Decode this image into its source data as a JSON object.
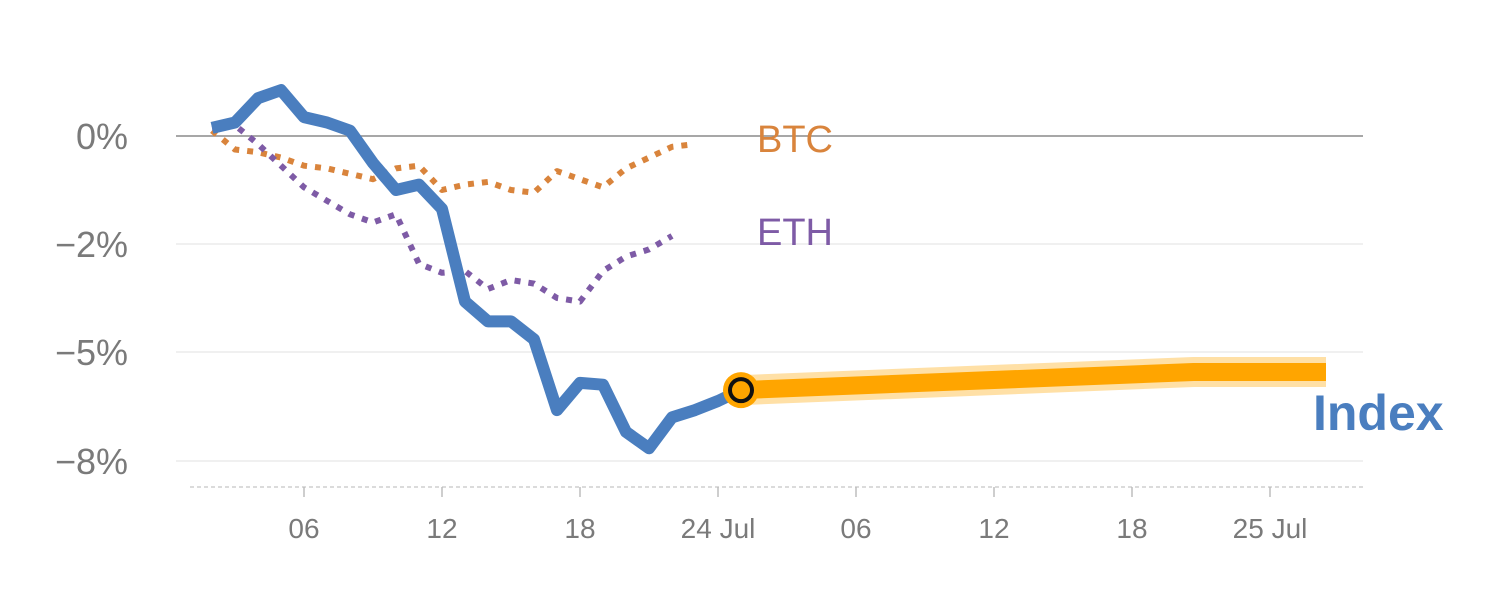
{
  "chart_data": {
    "type": "line",
    "y_ticks": [
      {
        "value": 0,
        "label": "0%"
      },
      {
        "value": -2,
        "label": "−2%"
      },
      {
        "value": -5,
        "label": "−5%"
      },
      {
        "value": -8,
        "label": "−8%"
      }
    ],
    "x_ticks": [
      {
        "index": 4,
        "label": "06"
      },
      {
        "index": 10,
        "label": "12"
      },
      {
        "index": 16,
        "label": "18"
      },
      {
        "index": 22,
        "label": "24 Jul"
      },
      {
        "index": 28,
        "label": "06"
      },
      {
        "index": 34,
        "label": "12"
      },
      {
        "index": 40,
        "label": "18"
      },
      {
        "index": 46,
        "label": "25 Jul"
      }
    ],
    "series": [
      {
        "name": "BTC",
        "label": "BTC",
        "color": "#d9843c",
        "style": "dotted",
        "values": [
          0.1,
          -0.25,
          -0.3,
          -0.4,
          -0.55,
          -0.6,
          -0.7,
          -0.8,
          -0.6,
          -0.55,
          -1.0,
          -0.9,
          -0.85,
          -1.0,
          -1.05,
          -0.65,
          -0.8,
          -0.95,
          -0.6,
          -0.4,
          -0.2,
          -0.15
        ]
      },
      {
        "name": "ETH",
        "label": "ETH",
        "color": "#7e5ba6",
        "style": "dotted",
        "values": [
          0.15,
          0.2,
          -0.15,
          -0.55,
          -0.95,
          -1.2,
          -1.45,
          -1.6,
          -1.45,
          -2.55,
          -2.8,
          -2.75,
          -3.25,
          -3.0,
          -3.1,
          -3.5,
          -3.6,
          -2.75,
          -2.35,
          -2.15,
          -1.85
        ]
      },
      {
        "name": "Index",
        "label": "Index",
        "color": "#4a7ebf",
        "style": "solid",
        "values": [
          0.15,
          0.25,
          0.7,
          0.85,
          0.35,
          0.25,
          0.1,
          -0.5,
          -1.0,
          -0.9,
          -1.35,
          -3.6,
          -4.15,
          -4.15,
          -4.65,
          -6.6,
          -5.85,
          -5.9,
          -7.2,
          -7.65,
          -6.8,
          -6.6,
          -6.35,
          -6.05
        ]
      }
    ],
    "forecast": {
      "color": "#ffa500",
      "start_index": 23,
      "values": [
        -6.05,
        -5.55,
        -5.55
      ]
    },
    "grid": true
  }
}
